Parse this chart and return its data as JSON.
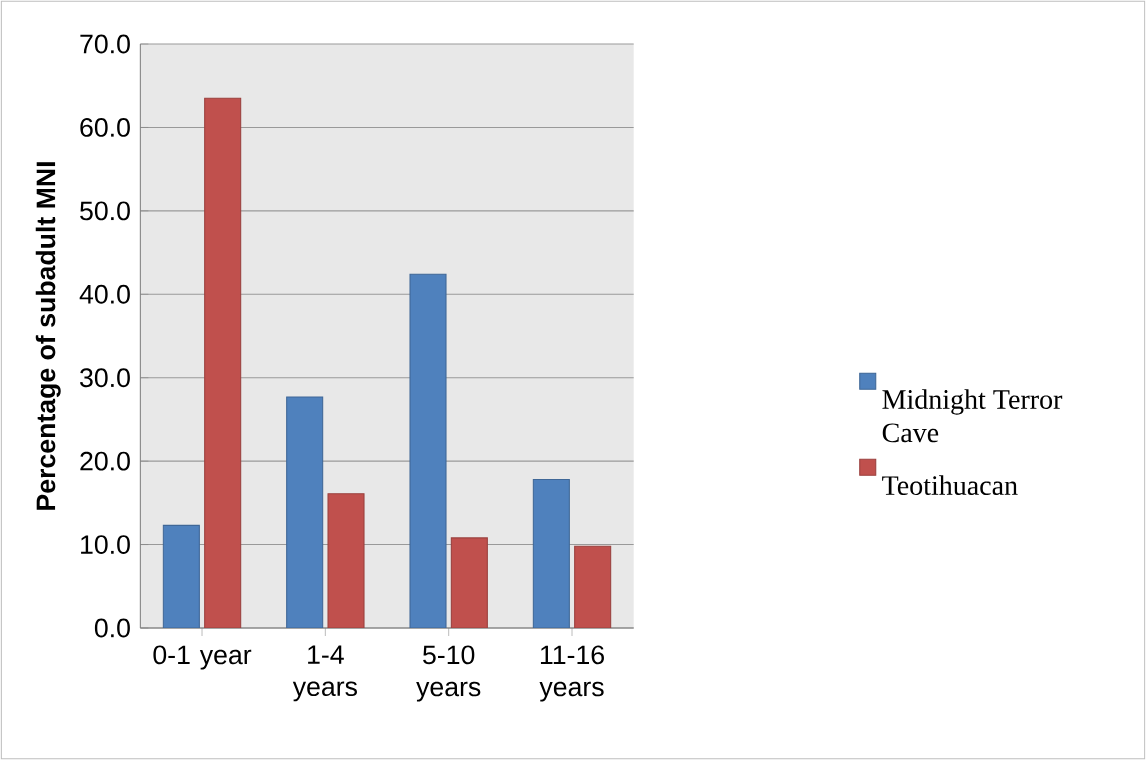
{
  "chart_data": {
    "type": "bar",
    "ylabel": "Percentage of subadult MNI",
    "categories": [
      "0-1 year",
      "1-4 years",
      "5-10 years",
      "11-16 years"
    ],
    "series": [
      {
        "name": "Midnight Terror Cave",
        "color": "#4f81bd",
        "values": [
          12.3,
          27.7,
          42.4,
          17.8
        ]
      },
      {
        "name": "Teotihuacan",
        "color": "#c0504d",
        "values": [
          63.5,
          16.1,
          10.8,
          9.8
        ]
      }
    ],
    "ylim": [
      0,
      70
    ],
    "yticks": [
      {
        "value": 0,
        "label": "0.0"
      },
      {
        "value": 10,
        "label": "10.0"
      },
      {
        "value": 20,
        "label": "20.0"
      },
      {
        "value": 30,
        "label": "30.0"
      },
      {
        "value": 40,
        "label": "40.0"
      },
      {
        "value": 50,
        "label": "50.0"
      },
      {
        "value": 60,
        "label": "60.0"
      },
      {
        "value": 70,
        "label": "70.0"
      }
    ],
    "grid": "y",
    "legend": "right"
  }
}
